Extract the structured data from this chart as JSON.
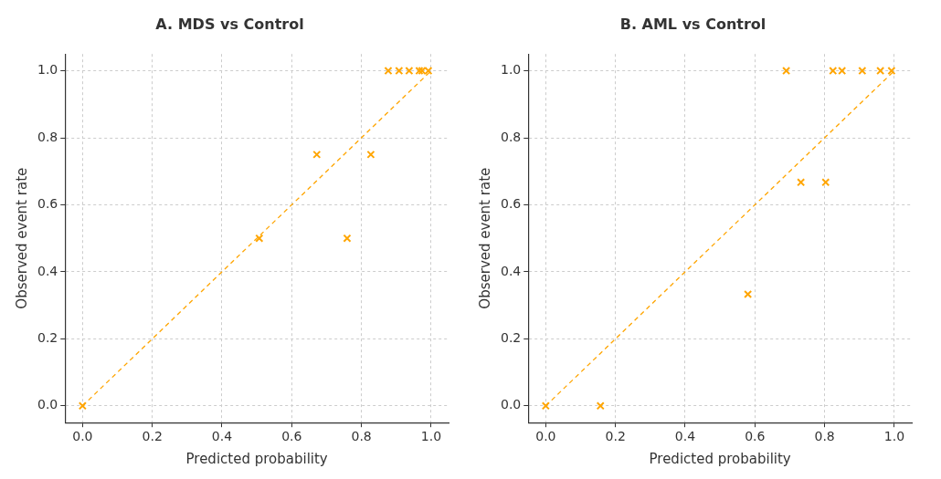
{
  "chart_data": [
    {
      "type": "scatter",
      "title": "A. MDS vs Control",
      "xlabel": "Predicted probability",
      "ylabel": "Observed event rate",
      "xlim": [
        -0.05,
        1.05
      ],
      "ylim": [
        -0.05,
        1.05
      ],
      "xticks": [
        {
          "value": 0,
          "label": "0.0"
        },
        {
          "value": 0.2,
          "label": "0.2"
        },
        {
          "value": 0.4,
          "label": "0.4"
        },
        {
          "value": 0.6,
          "label": "0.6"
        },
        {
          "value": 0.8,
          "label": "0.8"
        },
        {
          "value": 1,
          "label": "1.0"
        }
      ],
      "yticks": [
        {
          "value": 0,
          "label": "0.0"
        },
        {
          "value": 0.2,
          "label": "0.2"
        },
        {
          "value": 0.4,
          "label": "0.4"
        },
        {
          "value": 0.6,
          "label": "0.6"
        },
        {
          "value": 0.8,
          "label": "0.8"
        },
        {
          "value": 1,
          "label": "1.0"
        }
      ],
      "grid": true,
      "legend": false,
      "series": [
        {
          "color": "#ffa500",
          "marker": "cross",
          "x": [
            0,
            0.507,
            0.672,
            0.759,
            0.827,
            0.877,
            0.908,
            0.937,
            0.966,
            0.974,
            0.992
          ],
          "values": [
            0,
            0.5,
            0.75,
            0.5,
            0.75,
            1,
            1,
            1,
            1,
            1,
            1
          ]
        },
        {
          "type": "line",
          "color": "#ffa500",
          "line_style": "dashed",
          "marker": "none",
          "x": [
            0,
            1
          ],
          "values": [
            0,
            1
          ]
        }
      ]
    },
    {
      "type": "scatter",
      "title": "B. AML vs Control",
      "xlabel": "Predicted probability",
      "ylabel": "Observed event rate",
      "xlim": [
        -0.05,
        1.05
      ],
      "ylim": [
        -0.05,
        1.05
      ],
      "xticks": [
        {
          "value": 0,
          "label": "0.0"
        },
        {
          "value": 0.2,
          "label": "0.2"
        },
        {
          "value": 0.4,
          "label": "0.4"
        },
        {
          "value": 0.6,
          "label": "0.6"
        },
        {
          "value": 0.8,
          "label": "0.8"
        },
        {
          "value": 1,
          "label": "1.0"
        }
      ],
      "yticks": [
        {
          "value": 0,
          "label": "0.0"
        },
        {
          "value": 0.2,
          "label": "0.2"
        },
        {
          "value": 0.4,
          "label": "0.4"
        },
        {
          "value": 0.6,
          "label": "0.6"
        },
        {
          "value": 0.8,
          "label": "0.8"
        },
        {
          "value": 1,
          "label": "1.0"
        }
      ],
      "grid": true,
      "legend": false,
      "series": [
        {
          "color": "#ffa500",
          "marker": "cross",
          "x": [
            0,
            0.157,
            0.58,
            0.69,
            0.732,
            0.803,
            0.824,
            0.85,
            0.908,
            0.96,
            0.992
          ],
          "values": [
            0,
            0,
            0.333,
            1,
            0.667,
            0.667,
            1,
            1,
            1,
            1,
            1
          ]
        },
        {
          "type": "line",
          "color": "#ffa500",
          "line_style": "dashed",
          "marker": "none",
          "x": [
            0,
            1
          ],
          "values": [
            0,
            1
          ]
        }
      ]
    }
  ]
}
